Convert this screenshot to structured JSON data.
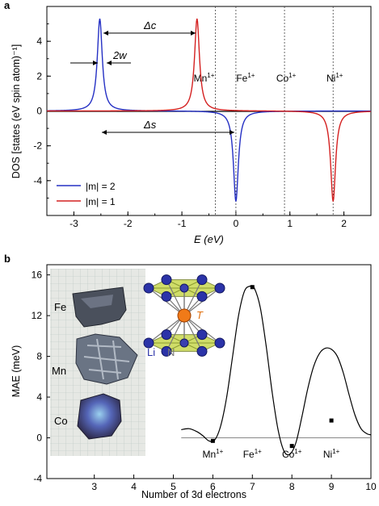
{
  "panel_a": {
    "label": "a",
    "chart_data": {
      "type": "line",
      "xlabel": "E (eV)",
      "ylabel": "DOS [states (eV spin atom)⁻¹]",
      "xlim": [
        -3.5,
        2.5
      ],
      "ylim": [
        -6,
        6
      ],
      "xticks": [
        -3,
        -2,
        -1,
        0,
        1,
        2
      ],
      "yticks": [
        -4,
        -2,
        0,
        2,
        4
      ],
      "series": [
        {
          "name": "|m| = 2",
          "color": "#2530c4",
          "peaks": [
            {
              "x": -2.52,
              "y": 5.3
            },
            {
              "x": 0.0,
              "y": -5.2
            }
          ],
          "gamma": 0.055
        },
        {
          "name": "|m| = 1",
          "color": "#d42020",
          "peaks": [
            {
              "x": -0.72,
              "y": 5.3
            },
            {
              "x": 1.8,
              "y": -5.2
            }
          ],
          "gamma": 0.055
        }
      ],
      "reference_lines": [
        {
          "x": -0.38,
          "label_base": "Mn",
          "label_sup": "1+"
        },
        {
          "x": 0.0,
          "label_base": "Fe",
          "label_sup": "1+"
        },
        {
          "x": 0.9,
          "label_base": "Co",
          "label_sup": "1+"
        },
        {
          "x": 1.8,
          "label_base": "Ni",
          "label_sup": "1+"
        }
      ],
      "annotations": [
        {
          "id": "delta-c",
          "text": "Δc"
        },
        {
          "id": "two-w",
          "text": "2w"
        },
        {
          "id": "delta-s",
          "text": "Δs"
        }
      ]
    }
  },
  "panel_b": {
    "label": "b",
    "chart_data": {
      "type": "line",
      "xlabel": "Number of 3d electrons",
      "ylabel": "MAE (meV)",
      "xlim": [
        1.8,
        10
      ],
      "ylim": [
        -4,
        17
      ],
      "xticks": [
        3,
        4,
        5,
        6,
        7,
        8,
        9,
        10
      ],
      "yticks": [
        -4,
        0,
        4,
        8,
        12,
        16
      ],
      "curve": {
        "x": [
          5.2,
          5.4,
          5.6,
          5.75,
          5.9,
          6.05,
          6.2,
          6.35,
          6.5,
          6.65,
          6.8,
          6.95,
          7.05,
          7.2,
          7.35,
          7.5,
          7.65,
          7.8,
          7.95,
          8.1,
          8.25,
          8.4,
          8.55,
          8.7,
          8.85,
          9.0,
          9.15,
          9.3,
          9.45,
          9.6,
          9.75,
          9.9,
          10.0
        ],
        "y": [
          0.8,
          0.9,
          0.6,
          0.2,
          -0.3,
          -0.2,
          1.2,
          4.0,
          8.0,
          12.0,
          14.4,
          14.9,
          14.7,
          12.8,
          9.0,
          4.5,
          0.8,
          -1.3,
          -1.6,
          -0.5,
          2.0,
          4.8,
          7.0,
          8.3,
          8.8,
          8.7,
          8.0,
          6.4,
          4.2,
          2.2,
          0.9,
          0.4,
          0.3
        ]
      },
      "points": [
        {
          "x": 6.0,
          "y": -0.3
        },
        {
          "x": 7.0,
          "y": 14.8
        },
        {
          "x": 8.0,
          "y": -0.8
        },
        {
          "x": 9.0,
          "y": 1.7
        }
      ],
      "point_labels": [
        {
          "x": 6.0,
          "base": "Mn",
          "sup": "1+"
        },
        {
          "x": 7.0,
          "base": "Fe",
          "sup": "1+"
        },
        {
          "x": 8.0,
          "base": "Co",
          "sup": "1+"
        },
        {
          "x": 9.0,
          "base": "Ni",
          "sup": "1+"
        }
      ],
      "photo_labels": [
        "Fe",
        "Mn",
        "Co"
      ],
      "structure_labels": {
        "t": "T",
        "li": "Li",
        "n": "N"
      }
    }
  }
}
